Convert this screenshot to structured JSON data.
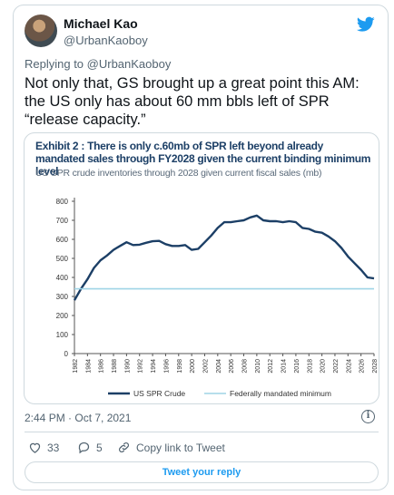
{
  "tweet": {
    "author_name": "Michael Kao",
    "author_handle": "@UrbanKaoboy",
    "reply_prefix": "Replying to ",
    "reply_handle": "@UrbanKaoboy",
    "text": "Not only that, GS brought up a great point this AM: the US only has about 60 mm bbls left of SPR “release capacity.”",
    "timestamp": "2:44 PM · Oct 7, 2021",
    "likes": "33",
    "replies": "5",
    "copy_link": "Copy link to Tweet",
    "reply_button": "Tweet your reply"
  },
  "icons": {
    "brand": "twitter-bird-icon",
    "info": "info-icon",
    "like": "heart-icon",
    "reply": "reply-bubble-icon",
    "link": "link-icon"
  },
  "colors": {
    "brand_blue": "#1d9bf0",
    "series_spr": "#1c3f66",
    "series_min": "#9fd4e6"
  },
  "chart_data": {
    "type": "line",
    "title": "Exhibit 2 : There is only c.60mb of SPR left beyond already mandated sales through FY2028 given the current binding minimum level",
    "subtitle": "US SPR crude inventories through 2028 given current fiscal sales (mb)",
    "ylim": [
      0,
      800
    ],
    "yticks": [
      "800",
      "700",
      "600",
      "500",
      "400",
      "300",
      "200",
      "100",
      "0"
    ],
    "xlim": [
      1982,
      2028
    ],
    "xticks": [
      "1982",
      "1984",
      "1986",
      "1988",
      "1990",
      "1992",
      "1994",
      "1996",
      "1998",
      "2000",
      "2002",
      "2004",
      "2006",
      "2008",
      "2010",
      "2012",
      "2014",
      "2016",
      "2018",
      "2020",
      "2022",
      "2024",
      "2026",
      "2028"
    ],
    "series": [
      {
        "name": "US SPR Crude",
        "x": [
          1982,
          1983,
          1984,
          1985,
          1986,
          1987,
          1988,
          1989,
          1990,
          1991,
          1992,
          1993,
          1994,
          1995,
          1996,
          1997,
          1998,
          1999,
          2000,
          2001,
          2002,
          2003,
          2004,
          2005,
          2006,
          2007,
          2008,
          2009,
          2010,
          2011,
          2012,
          2013,
          2014,
          2015,
          2016,
          2017,
          2018,
          2019,
          2020,
          2021,
          2022,
          2023,
          2024,
          2025,
          2026,
          2027,
          2028
        ],
        "values": [
          280,
          340,
          390,
          450,
          490,
          515,
          545,
          565,
          585,
          570,
          572,
          582,
          590,
          592,
          575,
          565,
          565,
          570,
          545,
          550,
          585,
          620,
          660,
          690,
          690,
          695,
          700,
          715,
          725,
          700,
          695,
          695,
          690,
          695,
          690,
          660,
          655,
          640,
          635,
          615,
          590,
          555,
          510,
          475,
          440,
          400,
          395
        ]
      },
      {
        "name": "Federally mandated minimum",
        "x": [
          1982,
          2028
        ],
        "values": [
          340,
          340
        ]
      }
    ],
    "legend": [
      "US SPR Crude",
      "Federally mandated minimum"
    ],
    "legend_position": "bottom",
    "grid": false
  }
}
